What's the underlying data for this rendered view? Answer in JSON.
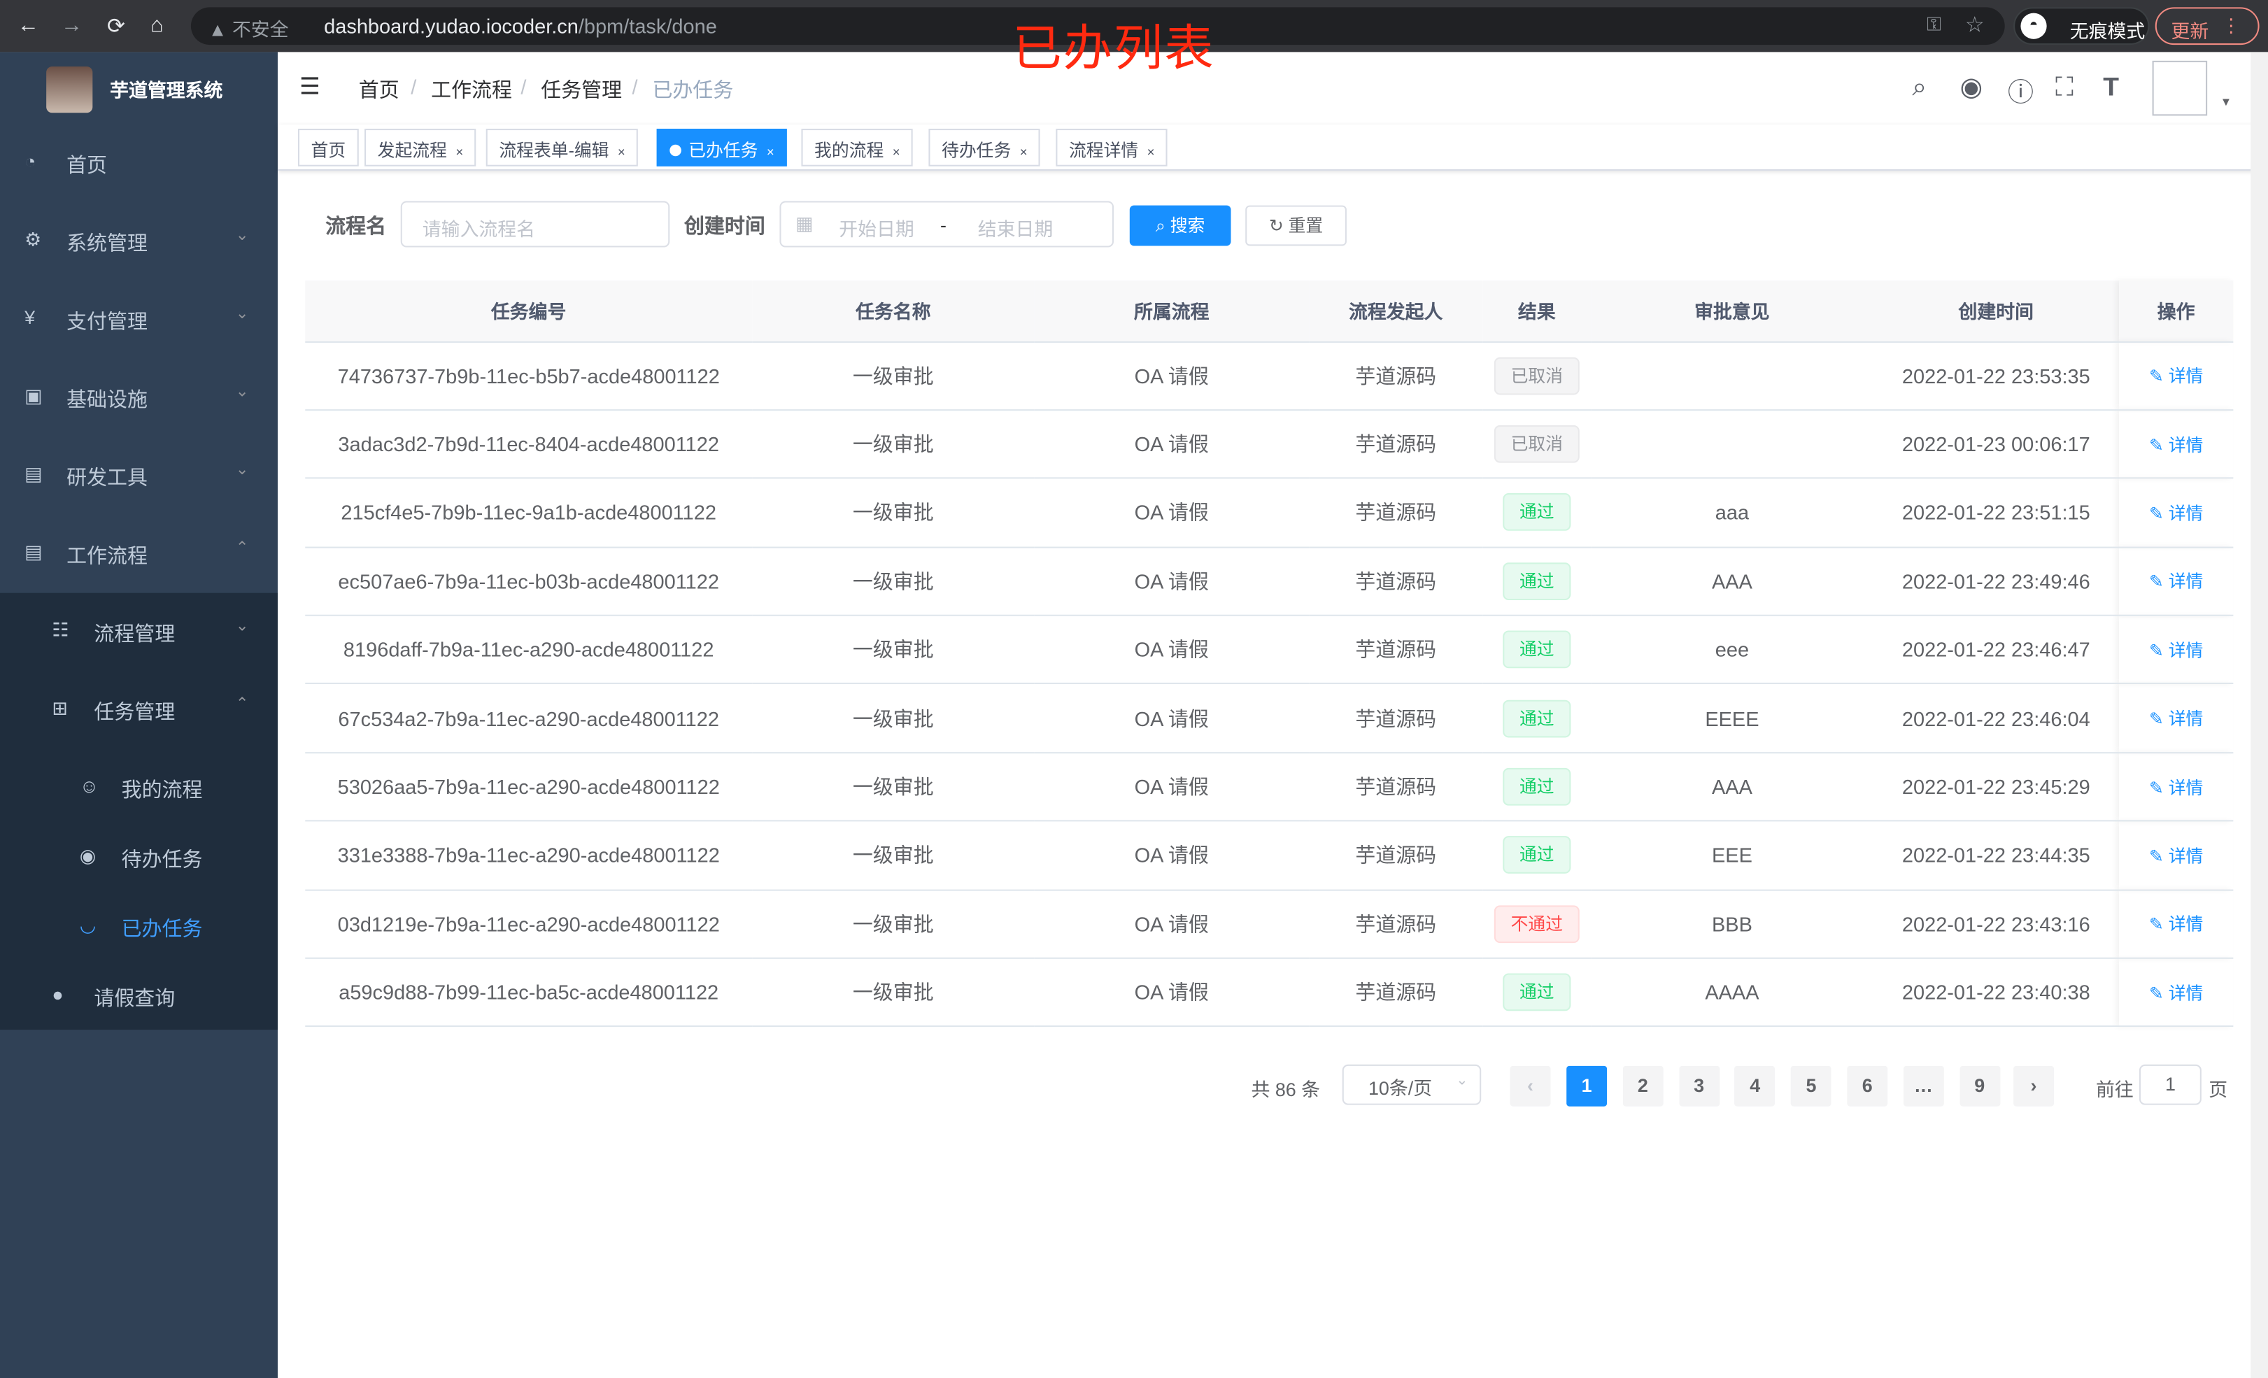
{
  "browser": {
    "back": "←",
    "forward": "→",
    "reload": "⟳",
    "home": "⌂",
    "security": "不安全",
    "url_host": "dashboard.yudao.iocoder.cn",
    "url_path": "/bpm/task/done",
    "incognito": "无痕模式",
    "update": "更新"
  },
  "overlay_title": "已办列表",
  "sidebar": {
    "brand": "芋道管理系统",
    "items": [
      {
        "label": "首页",
        "icon": "dashboard-icon"
      },
      {
        "label": "系统管理",
        "icon": "gear-icon"
      },
      {
        "label": "支付管理",
        "icon": "yen-icon"
      },
      {
        "label": "基础设施",
        "icon": "monitor-icon"
      },
      {
        "label": "研发工具",
        "icon": "toolbox-icon"
      },
      {
        "label": "工作流程",
        "icon": "toolbox-icon"
      },
      {
        "label": "流程管理",
        "icon": "tree-list-icon"
      },
      {
        "label": "任务管理",
        "icon": "tree-icon"
      },
      {
        "label": "我的流程",
        "icon": "people-icon"
      },
      {
        "label": "待办任务",
        "icon": "eye-icon"
      },
      {
        "label": "已办任务",
        "icon": "eye-closed-icon"
      },
      {
        "label": "请假查询",
        "icon": "user-icon"
      }
    ],
    "active": "已办任务"
  },
  "breadcrumb": [
    "首页",
    "工作流程",
    "任务管理",
    "已办任务"
  ],
  "tags": [
    {
      "label": "首页"
    },
    {
      "label": "发起流程"
    },
    {
      "label": "流程表单-编辑"
    },
    {
      "label": "已办任务",
      "active": true
    },
    {
      "label": "我的流程"
    },
    {
      "label": "待办任务"
    },
    {
      "label": "流程详情"
    }
  ],
  "search": {
    "name_label": "流程名",
    "name_placeholder": "请输入流程名",
    "time_label": "创建时间",
    "start_placeholder": "开始日期",
    "range_sep": "-",
    "end_placeholder": "结束日期",
    "search_btn": "搜索",
    "reset_btn": "重置"
  },
  "table": {
    "headers": [
      "任务编号",
      "任务名称",
      "所属流程",
      "流程发起人",
      "结果",
      "审批意见",
      "创建时间",
      "操作"
    ],
    "rows": [
      {
        "id": "74736737-7b9b-11ec-b5b7-acde48001122",
        "name": "一级审批",
        "process": "OA 请假",
        "starter": "芋道源码",
        "result": "已取消",
        "comment": "",
        "time": "2022-01-22 23:53:35",
        "op": "详情"
      },
      {
        "id": "3adac3d2-7b9d-11ec-8404-acde48001122",
        "name": "一级审批",
        "process": "OA 请假",
        "starter": "芋道源码",
        "result": "已取消",
        "comment": "",
        "time": "2022-01-23 00:06:17",
        "op": "详情"
      },
      {
        "id": "215cf4e5-7b9b-11ec-9a1b-acde48001122",
        "name": "一级审批",
        "process": "OA 请假",
        "starter": "芋道源码",
        "result": "通过",
        "comment": "aaa",
        "time": "2022-01-22 23:51:15",
        "op": "详情"
      },
      {
        "id": "ec507ae6-7b9a-11ec-b03b-acde48001122",
        "name": "一级审批",
        "process": "OA 请假",
        "starter": "芋道源码",
        "result": "通过",
        "comment": "AAA",
        "time": "2022-01-22 23:49:46",
        "op": "详情"
      },
      {
        "id": "8196daff-7b9a-11ec-a290-acde48001122",
        "name": "一级审批",
        "process": "OA 请假",
        "starter": "芋道源码",
        "result": "通过",
        "comment": "eee",
        "time": "2022-01-22 23:46:47",
        "op": "详情"
      },
      {
        "id": "67c534a2-7b9a-11ec-a290-acde48001122",
        "name": "一级审批",
        "process": "OA 请假",
        "starter": "芋道源码",
        "result": "通过",
        "comment": "EEEE",
        "time": "2022-01-22 23:46:04",
        "op": "详情"
      },
      {
        "id": "53026aa5-7b9a-11ec-a290-acde48001122",
        "name": "一级审批",
        "process": "OA 请假",
        "starter": "芋道源码",
        "result": "通过",
        "comment": "AAA",
        "time": "2022-01-22 23:45:29",
        "op": "详情"
      },
      {
        "id": "331e3388-7b9a-11ec-a290-acde48001122",
        "name": "一级审批",
        "process": "OA 请假",
        "starter": "芋道源码",
        "result": "通过",
        "comment": "EEE",
        "time": "2022-01-22 23:44:35",
        "op": "详情"
      },
      {
        "id": "03d1219e-7b9a-11ec-a290-acde48001122",
        "name": "一级审批",
        "process": "OA 请假",
        "starter": "芋道源码",
        "result": "不通过",
        "comment": "BBB",
        "time": "2022-01-22 23:43:16",
        "op": "详情"
      },
      {
        "id": "a59c9d88-7b99-11ec-ba5c-acde48001122",
        "name": "一级审批",
        "process": "OA 请假",
        "starter": "芋道源码",
        "result": "通过",
        "comment": "AAAA",
        "time": "2022-01-22 23:40:38",
        "op": "详情"
      }
    ]
  },
  "result_colors": {
    "已取消": {
      "fg": "#909399",
      "bg": "#f4f4f5",
      "bd": "#e9e9eb"
    },
    "通过": {
      "fg": "#13ce66",
      "bg": "#e7faf0",
      "bd": "#d0f5e0"
    },
    "不通过": {
      "fg": "#ff4949",
      "bg": "#ffeded",
      "bd": "#ffdbdb"
    }
  },
  "pagination": {
    "total": "共 86 条",
    "page_size": "10条/页",
    "pages": [
      "1",
      "2",
      "3",
      "4",
      "5",
      "6",
      "…",
      "9"
    ],
    "current": "1",
    "goto_label": "前往",
    "goto_value": "1",
    "goto_suffix": "页",
    "prev": "‹",
    "next": "›"
  },
  "accent": "#1890ff"
}
